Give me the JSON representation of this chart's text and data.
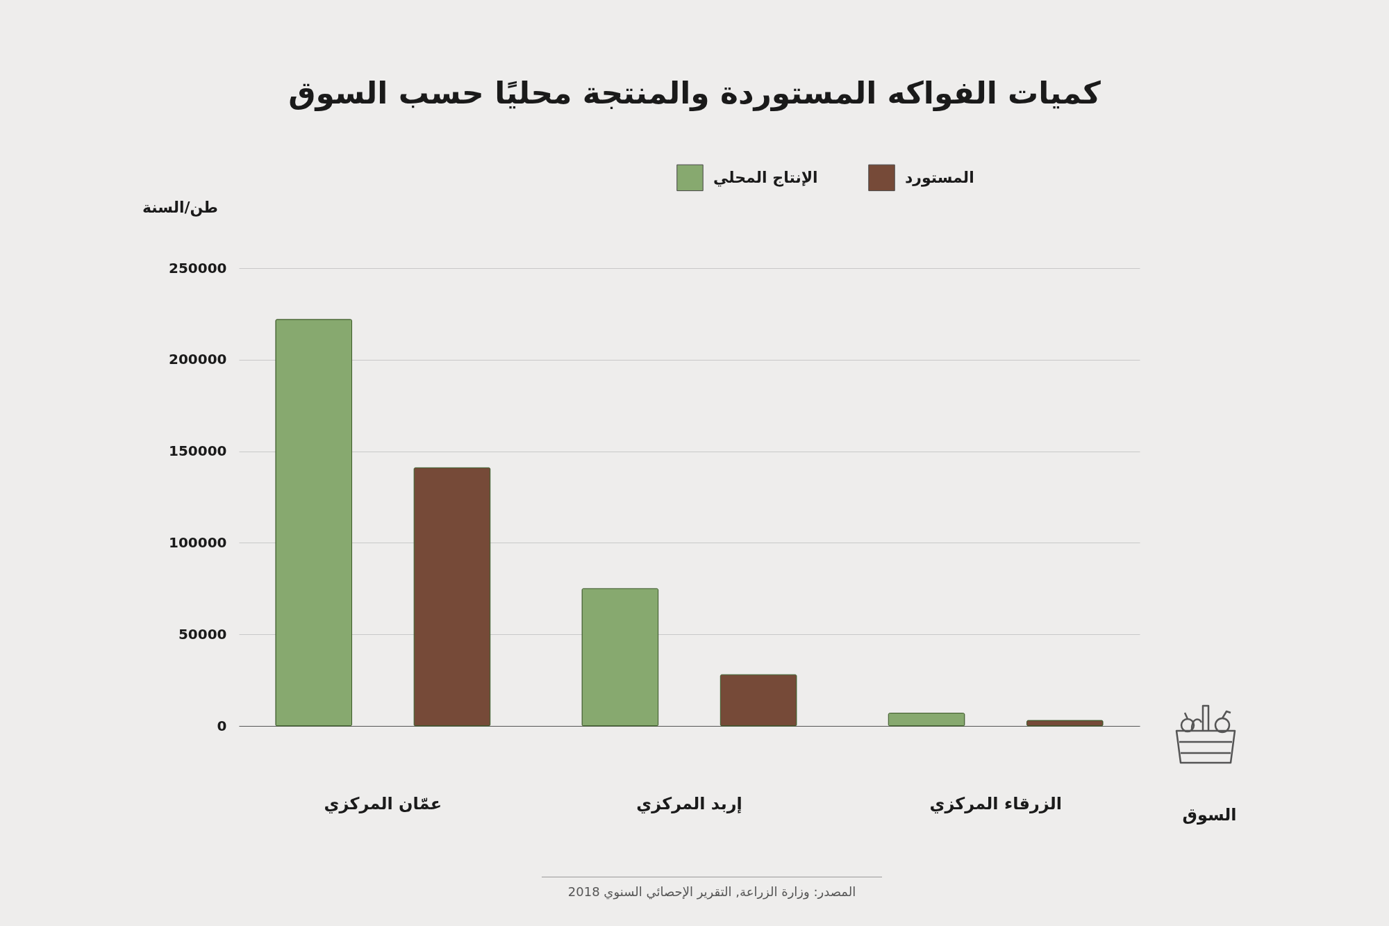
{
  "chart_data": {
    "type": "bar",
    "title": "كميات الفواكه المستوردة والمنتجة محليًا حسب السوق",
    "xlabel": "السوق",
    "ylabel": "طن/السنة",
    "categories": [
      "عمّان المركزي",
      "إربد المركزي",
      "الزرقاء المركزي"
    ],
    "series": [
      {
        "name": "الإنتاج المحلي",
        "color": "#87a96f",
        "values": [
          222000,
          75000,
          7000
        ]
      },
      {
        "name": "المستورد",
        "color": "#764a38",
        "values": [
          141000,
          28000,
          3000
        ]
      }
    ],
    "ylim": [
      0,
      250000
    ],
    "yticks": [
      0,
      50000,
      100000,
      150000,
      200000,
      250000
    ],
    "grid": "y",
    "legend": "top",
    "annotations": [
      "المصدر: وزارة الزراعة, التقرير الإحصائي السنوي 2018"
    ]
  }
}
